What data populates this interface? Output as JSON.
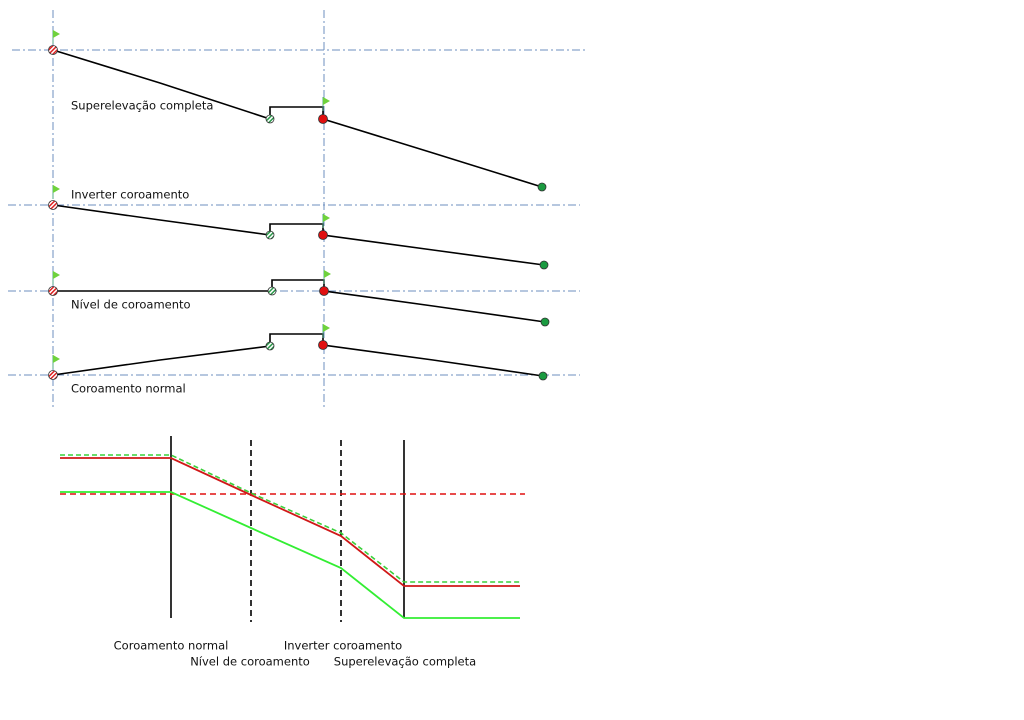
{
  "profiles": {
    "labels": [
      "Superelevação completa",
      "Inverter coroamento",
      "Nível de coroamento",
      "Coroamento normal"
    ]
  },
  "transition": {
    "labels": [
      "Coroamento normal",
      "Nível de coroamento",
      "Inverter coroamento",
      "Superelevação completa"
    ]
  }
}
